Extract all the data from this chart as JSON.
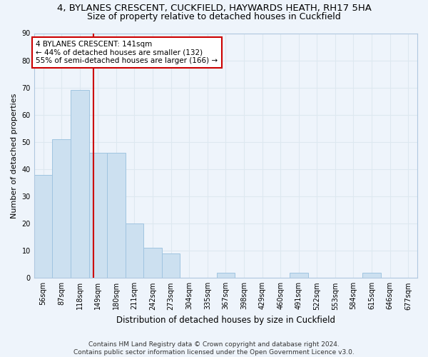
{
  "title": "4, BYLANES CRESCENT, CUCKFIELD, HAYWARDS HEATH, RH17 5HA",
  "subtitle": "Size of property relative to detached houses in Cuckfield",
  "xlabel": "Distribution of detached houses by size in Cuckfield",
  "ylabel": "Number of detached properties",
  "bin_labels": [
    "56sqm",
    "87sqm",
    "118sqm",
    "149sqm",
    "180sqm",
    "211sqm",
    "242sqm",
    "273sqm",
    "304sqm",
    "335sqm",
    "367sqm",
    "398sqm",
    "429sqm",
    "460sqm",
    "491sqm",
    "522sqm",
    "553sqm",
    "584sqm",
    "615sqm",
    "646sqm",
    "677sqm"
  ],
  "bar_heights": [
    38,
    51,
    69,
    46,
    46,
    20,
    11,
    9,
    0,
    0,
    2,
    0,
    0,
    0,
    2,
    0,
    0,
    0,
    2,
    0,
    0
  ],
  "bar_color": "#cce0f0",
  "bar_edge_color": "#a0c4e0",
  "grid_color": "#dde8f0",
  "background_color": "#eef4fb",
  "annotation_text": "4 BYLANES CRESCENT: 141sqm\n← 44% of detached houses are smaller (132)\n55% of semi-detached houses are larger (166) →",
  "annotation_box_color": "#ffffff",
  "annotation_box_edge": "#cc0000",
  "property_line_color": "#cc0000",
  "ylim": [
    0,
    90
  ],
  "yticks": [
    0,
    10,
    20,
    30,
    40,
    50,
    60,
    70,
    80,
    90
  ],
  "footer": "Contains HM Land Registry data © Crown copyright and database right 2024.\nContains public sector information licensed under the Open Government Licence v3.0.",
  "title_fontsize": 9.5,
  "subtitle_fontsize": 9,
  "xlabel_fontsize": 8.5,
  "ylabel_fontsize": 8,
  "tick_fontsize": 7,
  "annotation_fontsize": 7.5,
  "footer_fontsize": 6.5
}
